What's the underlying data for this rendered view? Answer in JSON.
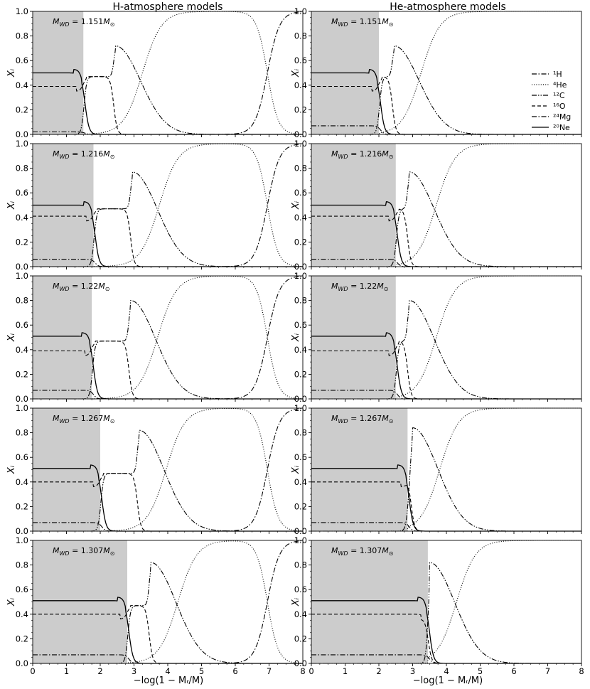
{
  "column_titles": [
    "H-atmosphere models",
    "He-atmosphere models"
  ],
  "x_axis_label": "−log(1 − Mᵣ/M)",
  "y_axis_label": "Xᵢ",
  "legend": [
    {
      "label": "¹H",
      "style": "dashdot"
    },
    {
      "label": "⁴He",
      "style": "dotted"
    },
    {
      "label": "¹²C",
      "style": "dashdotdot"
    },
    {
      "label": "¹⁶O",
      "style": "dashed"
    },
    {
      "label": "²⁴Mg",
      "style": "dashdot"
    },
    {
      "label": "²⁰Ne",
      "style": "solid"
    }
  ],
  "chart_data": {
    "type": "line",
    "layout": "5 rows x 2 columns of panels",
    "xlim": [
      0,
      8
    ],
    "ylim": [
      0,
      1.0
    ],
    "x_ticks": [
      "0",
      "1",
      "2",
      "3",
      "4",
      "5",
      "6",
      "7",
      "8"
    ],
    "y_ticks": [
      "0.0",
      "0.2",
      "0.4",
      "0.6",
      "0.8",
      "1.0"
    ],
    "xlabel": "−log(1 − Mᵣ/M)",
    "ylabel": "Xᵢ",
    "grid": false,
    "legend_position": "right, top-row right panel",
    "shade_color": "#cccccc",
    "masses": [
      "1.151",
      "1.216",
      "1.22",
      "1.267",
      "1.307"
    ],
    "mass_label_prefix": "M",
    "mass_label_sub": "WD",
    "mass_label_unit": "M",
    "shaded_until_x": {
      "H": [
        1.5,
        1.8,
        1.75,
        2.0,
        2.8
      ],
      "He": [
        2.0,
        2.5,
        2.5,
        2.85,
        3.45
      ]
    },
    "series": [
      {
        "name": "¹H",
        "description": "H-atmosphere only: rises from 0 near x≈6.5 to 1.0 at x≈7.8"
      },
      {
        "name": "⁴He",
        "description": "rises after the C/O layer to 1.0 (x≈4–5); falls near x≈7 in H models"
      },
      {
        "name": "¹²C",
        "description": "peak ≈0.72–0.84 just outside the core, then decays"
      },
      {
        "name": "¹⁶O",
        "description": "≈0.39–0.40 in the core, ≈0.45–0.49 in the transition zone"
      },
      {
        "name": "²⁴Mg",
        "description": "≈0.02–0.07 in the core"
      },
      {
        "name": "²⁰Ne",
        "description": "≈0.50–0.55 in the core, drops to 0 at the core edge"
      }
    ],
    "panels": [
      {
        "atm": "H",
        "mass": "1.151",
        "ne": 0.5,
        "o": 0.39,
        "mg": 0.02,
        "cpeak": 0.72,
        "cpeakx": 2.45
      },
      {
        "atm": "He",
        "mass": "1.151",
        "ne": 0.5,
        "o": 0.39,
        "mg": 0.07,
        "cpeak": 0.72,
        "cpeakx": 2.45
      },
      {
        "atm": "H",
        "mass": "1.216",
        "ne": 0.5,
        "o": 0.41,
        "mg": 0.06,
        "cpeak": 0.77,
        "cpeakx": 2.95
      },
      {
        "atm": "He",
        "mass": "1.216",
        "ne": 0.5,
        "o": 0.41,
        "mg": 0.06,
        "cpeak": 0.77,
        "cpeakx": 2.9
      },
      {
        "atm": "H",
        "mass": "1.22",
        "ne": 0.51,
        "o": 0.39,
        "mg": 0.07,
        "cpeak": 0.8,
        "cpeakx": 2.9
      },
      {
        "atm": "He",
        "mass": "1.22",
        "ne": 0.51,
        "o": 0.39,
        "mg": 0.07,
        "cpeak": 0.8,
        "cpeakx": 2.9
      },
      {
        "atm": "H",
        "mass": "1.267",
        "ne": 0.51,
        "o": 0.4,
        "mg": 0.07,
        "cpeak": 0.82,
        "cpeakx": 3.15
      },
      {
        "atm": "He",
        "mass": "1.267",
        "ne": 0.51,
        "o": 0.4,
        "mg": 0.07,
        "cpeak": 0.84,
        "cpeakx": 3.0
      },
      {
        "atm": "H",
        "mass": "1.307",
        "ne": 0.51,
        "o": 0.4,
        "mg": 0.07,
        "cpeak": 0.82,
        "cpeakx": 3.5
      },
      {
        "atm": "He",
        "mass": "1.307",
        "ne": 0.51,
        "o": 0.4,
        "mg": 0.07,
        "cpeak": 0.82,
        "cpeakx": 3.5
      }
    ]
  }
}
